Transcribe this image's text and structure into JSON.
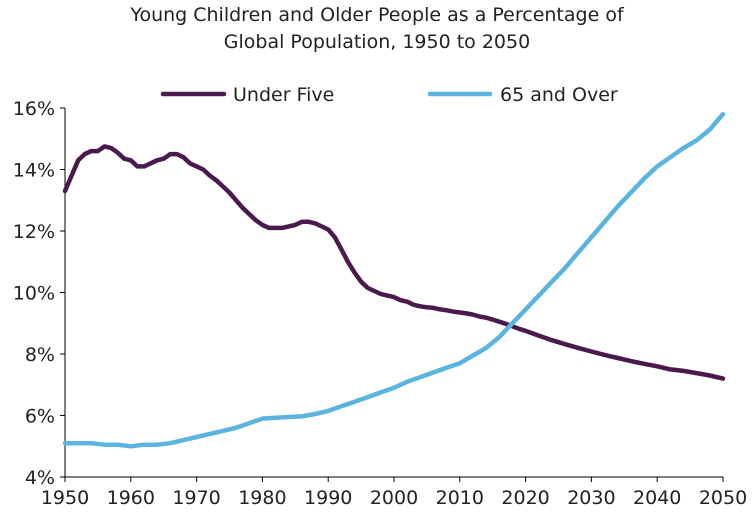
{
  "chart_data": {
    "type": "line",
    "title_lines": [
      "Young Children and Older People as a Percentage of",
      "Global Population, 1950 to 2050"
    ],
    "xlabel": "",
    "ylabel": "",
    "xlim": [
      1950,
      2050
    ],
    "ylim": [
      4,
      16
    ],
    "x_ticks": [
      1950,
      1960,
      1970,
      1980,
      1990,
      2000,
      2010,
      2020,
      2030,
      2040,
      2050
    ],
    "y_ticks": [
      4,
      6,
      8,
      10,
      12,
      14,
      16
    ],
    "y_tick_format": "percent",
    "grid": false,
    "legend_placement": "top",
    "series": [
      {
        "name": "Under Five",
        "color": "#4b1a4d",
        "points": [
          [
            1950,
            13.3
          ],
          [
            1951,
            13.8
          ],
          [
            1952,
            14.3
          ],
          [
            1953,
            14.5
          ],
          [
            1954,
            14.6
          ],
          [
            1955,
            14.6
          ],
          [
            1956,
            14.75
          ],
          [
            1957,
            14.7
          ],
          [
            1958,
            14.55
          ],
          [
            1959,
            14.35
          ],
          [
            1960,
            14.3
          ],
          [
            1961,
            14.1
          ],
          [
            1962,
            14.1
          ],
          [
            1963,
            14.2
          ],
          [
            1964,
            14.3
          ],
          [
            1965,
            14.35
          ],
          [
            1966,
            14.5
          ],
          [
            1967,
            14.5
          ],
          [
            1968,
            14.4
          ],
          [
            1969,
            14.2
          ],
          [
            1970,
            14.1
          ],
          [
            1971,
            14.0
          ],
          [
            1972,
            13.8
          ],
          [
            1973,
            13.65
          ],
          [
            1974,
            13.45
          ],
          [
            1975,
            13.25
          ],
          [
            1976,
            13.0
          ],
          [
            1977,
            12.75
          ],
          [
            1978,
            12.55
          ],
          [
            1979,
            12.35
          ],
          [
            1980,
            12.2
          ],
          [
            1981,
            12.1
          ],
          [
            1982,
            12.1
          ],
          [
            1983,
            12.1
          ],
          [
            1984,
            12.15
          ],
          [
            1985,
            12.2
          ],
          [
            1986,
            12.3
          ],
          [
            1987,
            12.3
          ],
          [
            1988,
            12.25
          ],
          [
            1989,
            12.15
          ],
          [
            1990,
            12.05
          ],
          [
            1991,
            11.8
          ],
          [
            1992,
            11.4
          ],
          [
            1993,
            11.0
          ],
          [
            1994,
            10.65
          ],
          [
            1995,
            10.35
          ],
          [
            1996,
            10.15
          ],
          [
            1997,
            10.05
          ],
          [
            1998,
            9.95
          ],
          [
            1999,
            9.9
          ],
          [
            2000,
            9.85
          ],
          [
            2001,
            9.75
          ],
          [
            2002,
            9.7
          ],
          [
            2003,
            9.6
          ],
          [
            2004,
            9.55
          ],
          [
            2005,
            9.52
          ],
          [
            2006,
            9.5
          ],
          [
            2007,
            9.45
          ],
          [
            2008,
            9.42
          ],
          [
            2009,
            9.38
          ],
          [
            2010,
            9.35
          ],
          [
            2011,
            9.32
          ],
          [
            2012,
            9.28
          ],
          [
            2013,
            9.22
          ],
          [
            2014,
            9.18
          ],
          [
            2015,
            9.12
          ],
          [
            2016,
            9.05
          ],
          [
            2017,
            8.98
          ],
          [
            2018,
            8.9
          ],
          [
            2019,
            8.82
          ],
          [
            2020,
            8.75
          ],
          [
            2022,
            8.6
          ],
          [
            2024,
            8.45
          ],
          [
            2026,
            8.32
          ],
          [
            2028,
            8.2
          ],
          [
            2030,
            8.08
          ],
          [
            2032,
            7.97
          ],
          [
            2034,
            7.87
          ],
          [
            2036,
            7.77
          ],
          [
            2038,
            7.68
          ],
          [
            2040,
            7.6
          ],
          [
            2042,
            7.5
          ],
          [
            2044,
            7.45
          ],
          [
            2046,
            7.38
          ],
          [
            2048,
            7.3
          ],
          [
            2050,
            7.2
          ]
        ]
      },
      {
        "name": "65 and Over",
        "color": "#5bb4e0",
        "points": [
          [
            1950,
            5.1
          ],
          [
            1952,
            5.1
          ],
          [
            1954,
            5.1
          ],
          [
            1956,
            5.05
          ],
          [
            1958,
            5.05
          ],
          [
            1960,
            5.0
          ],
          [
            1962,
            5.05
          ],
          [
            1964,
            5.05
          ],
          [
            1966,
            5.1
          ],
          [
            1968,
            5.2
          ],
          [
            1970,
            5.3
          ],
          [
            1972,
            5.4
          ],
          [
            1974,
            5.5
          ],
          [
            1976,
            5.6
          ],
          [
            1978,
            5.75
          ],
          [
            1980,
            5.9
          ],
          [
            1982,
            5.93
          ],
          [
            1984,
            5.95
          ],
          [
            1986,
            5.97
          ],
          [
            1988,
            6.05
          ],
          [
            1990,
            6.15
          ],
          [
            1992,
            6.3
          ],
          [
            1994,
            6.45
          ],
          [
            1996,
            6.6
          ],
          [
            1998,
            6.75
          ],
          [
            2000,
            6.9
          ],
          [
            2002,
            7.1
          ],
          [
            2004,
            7.25
          ],
          [
            2006,
            7.4
          ],
          [
            2008,
            7.55
          ],
          [
            2010,
            7.7
          ],
          [
            2012,
            7.95
          ],
          [
            2014,
            8.2
          ],
          [
            2016,
            8.55
          ],
          [
            2018,
            9.0
          ],
          [
            2020,
            9.45
          ],
          [
            2022,
            9.9
          ],
          [
            2024,
            10.35
          ],
          [
            2026,
            10.8
          ],
          [
            2028,
            11.3
          ],
          [
            2030,
            11.8
          ],
          [
            2032,
            12.3
          ],
          [
            2034,
            12.8
          ],
          [
            2036,
            13.25
          ],
          [
            2038,
            13.7
          ],
          [
            2040,
            14.1
          ],
          [
            2042,
            14.4
          ],
          [
            2044,
            14.7
          ],
          [
            2046,
            14.95
          ],
          [
            2048,
            15.3
          ],
          [
            2050,
            15.8
          ]
        ]
      }
    ]
  }
}
